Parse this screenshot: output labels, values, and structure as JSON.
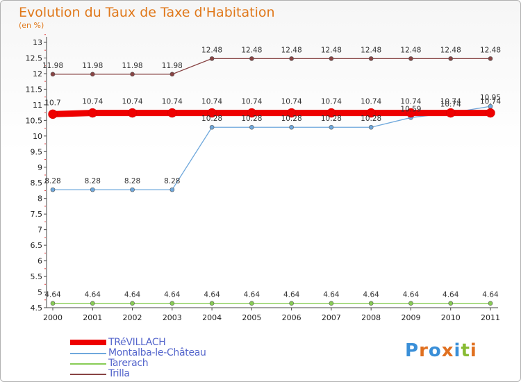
{
  "title": "Evolution du Taux de Taxe d'Habitation",
  "subtitle": "(en %)",
  "logo_text": "Proxiti",
  "chart_data": {
    "type": "line",
    "title": "Evolution du Taux de Taxe d'Habitation",
    "ylabel": "(en %)",
    "xlabel": "",
    "x": [
      "2000",
      "2001",
      "2002",
      "2003",
      "2004",
      "2005",
      "2006",
      "2007",
      "2008",
      "2009",
      "2010",
      "2011"
    ],
    "ylim": [
      4.5,
      13
    ],
    "yticks": [
      "4.5",
      "5",
      "5.5",
      "6",
      "6.5",
      "7",
      "7.5",
      "8",
      "8.5",
      "9",
      "9.5",
      "10",
      "10.5",
      "11",
      "11.5",
      "12",
      "12.5",
      "13"
    ],
    "grid": false,
    "legend_position": "bottom",
    "series": [
      {
        "name": "TRéVILLACH",
        "color": "#ee0000",
        "values": [
          10.7,
          10.74,
          10.74,
          10.74,
          10.74,
          10.74,
          10.74,
          10.74,
          10.74,
          10.74,
          10.74,
          10.74
        ],
        "labels": [
          "10.7",
          "10.74",
          "10.74",
          "10.74",
          "10.74",
          "10.74",
          "10.74",
          "10.74",
          "10.74",
          "10.74",
          "10.74",
          "10.74"
        ]
      },
      {
        "name": "Montalba-le-Château",
        "color": "#6fa8dc",
        "values": [
          8.28,
          8.28,
          8.28,
          8.28,
          10.28,
          10.28,
          10.28,
          10.28,
          10.28,
          10.59,
          10.74,
          10.95
        ],
        "labels": [
          "8.28",
          "8.28",
          "8.28",
          "8.28",
          "10.28",
          "10.28",
          "10.28",
          "10.28",
          "10.28",
          "10.59",
          "10.74",
          "10.95"
        ]
      },
      {
        "name": "Tarerach",
        "color": "#88cc55",
        "values": [
          4.64,
          4.64,
          4.64,
          4.64,
          4.64,
          4.64,
          4.64,
          4.64,
          4.64,
          4.64,
          4.64,
          4.64
        ],
        "labels": [
          "4.64",
          "4.64",
          "4.64",
          "4.64",
          "4.64",
          "4.64",
          "4.64",
          "4.64",
          "4.64",
          "4.64",
          "4.64",
          "4.64"
        ]
      },
      {
        "name": "Trilla",
        "color": "#884444",
        "values": [
          11.98,
          11.98,
          11.98,
          11.98,
          12.48,
          12.48,
          12.48,
          12.48,
          12.48,
          12.48,
          12.48,
          12.48
        ],
        "labels": [
          "11.98",
          "11.98",
          "11.98",
          "11.98",
          "12.48",
          "12.48",
          "12.48",
          "12.48",
          "12.48",
          "12.48",
          "12.48",
          "12.48"
        ]
      }
    ]
  }
}
